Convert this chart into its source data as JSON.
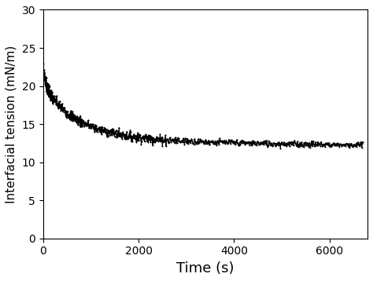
{
  "xlabel": "Time (s)",
  "ylabel": "Interfacial tension (mN/m)",
  "xlim": [
    0,
    6800
  ],
  "ylim": [
    0,
    30
  ],
  "xticks": [
    0,
    2000,
    4000,
    6000
  ],
  "yticks": [
    0,
    5,
    10,
    15,
    20,
    25,
    30
  ],
  "line_color": "#000000",
  "background_color": "#ffffff",
  "marker": ".",
  "markersize": 2.0,
  "linewidth": 0.8,
  "xlabel_fontsize": 13,
  "ylabel_fontsize": 11,
  "tick_fontsize": 10,
  "figsize": [
    4.74,
    3.58
  ],
  "dpi": 100
}
